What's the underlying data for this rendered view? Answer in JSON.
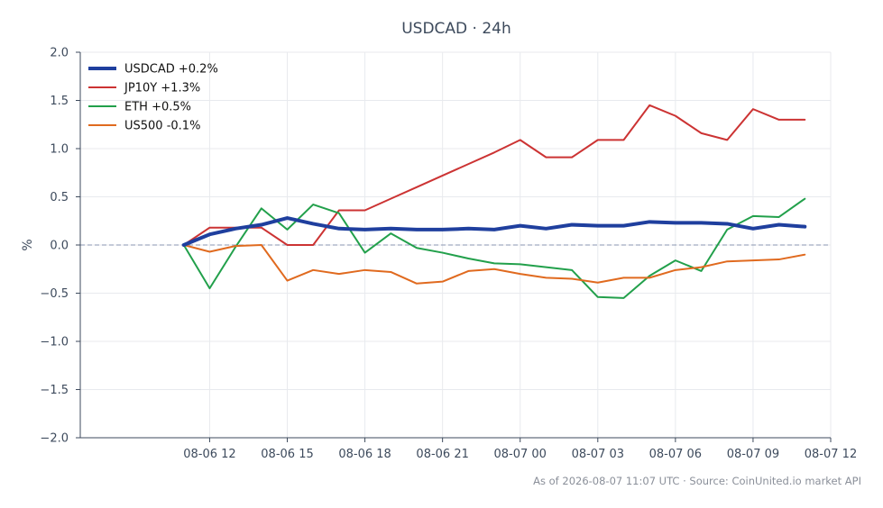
{
  "chart_data": {
    "type": "line",
    "title": "USDCAD · 24h",
    "ylabel": "%",
    "xlabel": "",
    "ylim": [
      -2.0,
      2.0
    ],
    "xlim_hours": [
      7.0,
      36.0
    ],
    "y_ticks": [
      "2.0",
      "1.5",
      "1.0",
      "0.5",
      "0.0",
      "−0.5",
      "−1.0",
      "−1.5",
      "−2.0"
    ],
    "y_tick_values": [
      2.0,
      1.5,
      1.0,
      0.5,
      0.0,
      -0.5,
      -1.0,
      -1.5,
      -2.0
    ],
    "x_ticks": [
      "08-06 12",
      "08-06 15",
      "08-06 18",
      "08-06 21",
      "08-07 00",
      "08-07 03",
      "08-07 06",
      "08-07 09",
      "08-07 12"
    ],
    "x_tick_hours": [
      12,
      15,
      18,
      21,
      24,
      27,
      30,
      33,
      36
    ],
    "x_hours": [
      11,
      12,
      13,
      14,
      15,
      16,
      17,
      18,
      19,
      20,
      21,
      22,
      23,
      24,
      25,
      26,
      27,
      28,
      29,
      30,
      31,
      32,
      33,
      34,
      35
    ],
    "grid": true,
    "legend_position": "top-left",
    "zero_line": true,
    "series": [
      {
        "name": "USDCAD +0.2%",
        "color": "#1f3f9e",
        "width": 4,
        "values": [
          0.0,
          0.11,
          0.17,
          0.21,
          0.28,
          0.22,
          0.17,
          0.16,
          0.17,
          0.16,
          0.16,
          0.17,
          0.16,
          0.2,
          0.17,
          0.21,
          0.2,
          0.2,
          0.24,
          0.23,
          0.23,
          0.22,
          0.17,
          0.21,
          0.19
        ]
      },
      {
        "name": "JP10Y +1.3%",
        "color": "#cc3333",
        "width": 2,
        "values": [
          0.0,
          0.18,
          0.18,
          0.18,
          0.0,
          0.0,
          0.36,
          0.36,
          0.48,
          0.6,
          0.72,
          0.84,
          0.96,
          1.09,
          0.91,
          0.91,
          1.09,
          1.09,
          1.45,
          1.34,
          1.16,
          1.09,
          1.41,
          1.3,
          1.3
        ]
      },
      {
        "name": "ETH +0.5%",
        "color": "#22a04b",
        "width": 2,
        "values": [
          0.0,
          -0.45,
          -0.02,
          0.38,
          0.16,
          0.42,
          0.33,
          -0.08,
          0.12,
          -0.03,
          -0.08,
          -0.14,
          -0.19,
          -0.2,
          -0.23,
          -0.26,
          -0.54,
          -0.55,
          -0.32,
          -0.16,
          -0.27,
          0.16,
          0.3,
          0.29,
          0.48
        ]
      },
      {
        "name": "US500 -0.1%",
        "color": "#e06a1f",
        "width": 2,
        "values": [
          0.0,
          -0.07,
          -0.01,
          0.0,
          -0.37,
          -0.26,
          -0.3,
          -0.26,
          -0.28,
          -0.4,
          -0.38,
          -0.27,
          -0.25,
          -0.3,
          -0.34,
          -0.35,
          -0.39,
          -0.34,
          -0.34,
          -0.26,
          -0.23,
          -0.17,
          -0.16,
          -0.15,
          -0.1
        ]
      }
    ],
    "footer": "As of 2026-08-07 11:07 UTC · Source: CoinUnited.io market API"
  }
}
